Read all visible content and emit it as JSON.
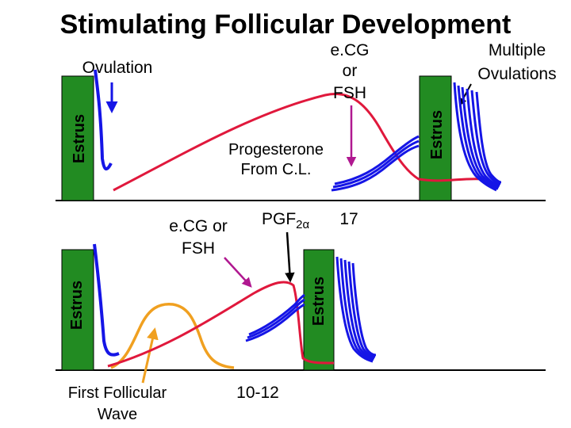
{
  "title": "Stimulating Follicular Development",
  "top_panel": {
    "ovulation_label": "Ovulation",
    "ecg_label_lines": [
      "e.CG",
      "or",
      "FSH"
    ],
    "multiple_ovulations_lines": [
      "Multiple",
      "Ovulations"
    ],
    "progesterone_lines": [
      "Progesterone",
      "From C.L."
    ],
    "estrus_left": "Estrus",
    "estrus_right": "Estrus"
  },
  "bottom_panel": {
    "ecg_label_lines": [
      "e.CG or",
      "FSH"
    ],
    "pgf_label": "PGF",
    "pgf_subscript": "2α",
    "day_17_label": "17",
    "day_10_12_label": "10-12",
    "first_wave_lines": [
      "First Follicular",
      "Wave"
    ],
    "estrus_left": "Estrus",
    "estrus_right": "Estrus"
  },
  "colors": {
    "estrus_bar": "#228b22",
    "follicle_blue": "#1515e6",
    "progesterone_red": "#e0183c",
    "first_wave_orange": "#f0a020",
    "annotation_arrow_purple": "#b01890",
    "black": "#000000"
  }
}
